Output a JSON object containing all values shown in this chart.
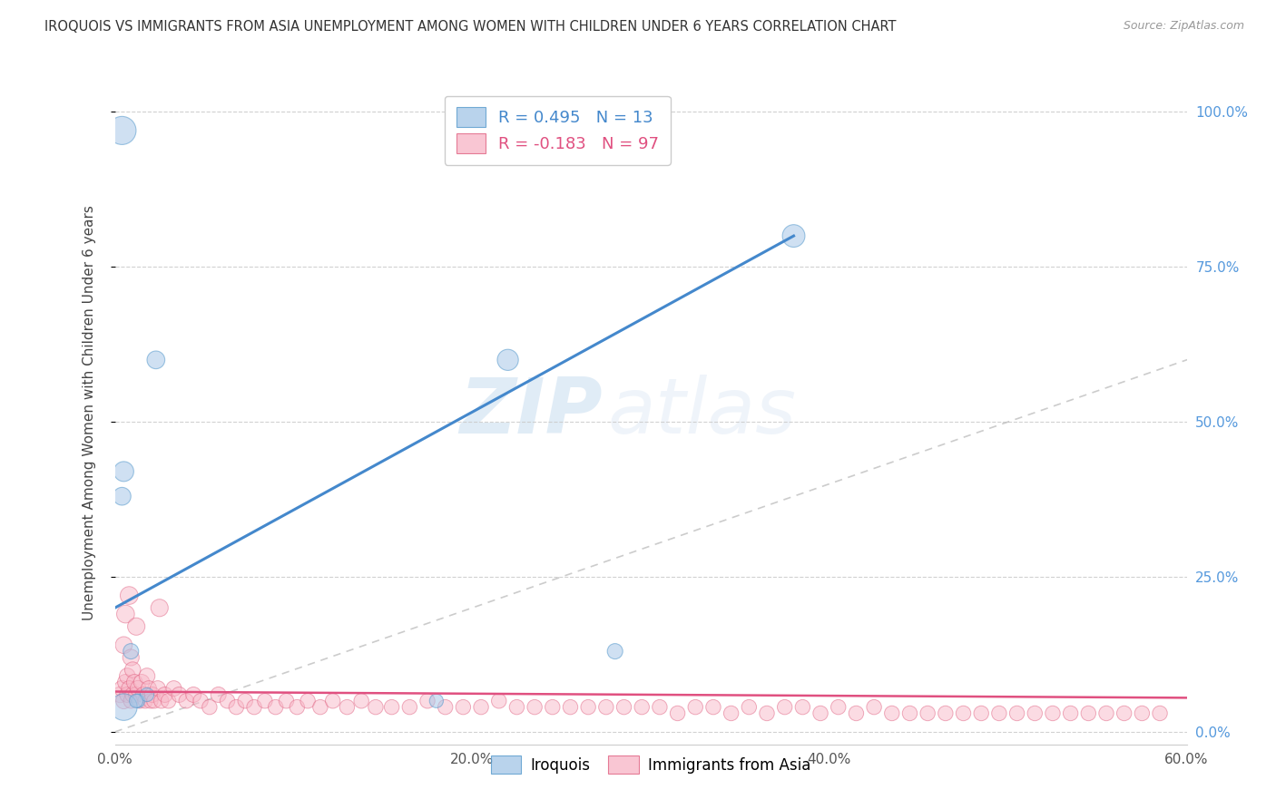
{
  "title": "IROQUOIS VS IMMIGRANTS FROM ASIA UNEMPLOYMENT AMONG WOMEN WITH CHILDREN UNDER 6 YEARS CORRELATION CHART",
  "source": "Source: ZipAtlas.com",
  "ylabel": "Unemployment Among Women with Children Under 6 years",
  "xlim": [
    0.0,
    0.6
  ],
  "ylim": [
    -0.02,
    1.05
  ],
  "xtick_labels": [
    "0.0%",
    "20.0%",
    "40.0%",
    "60.0%"
  ],
  "xtick_vals": [
    0.0,
    0.2,
    0.4,
    0.6
  ],
  "ytick_labels_right": [
    "0.0%",
    "25.0%",
    "50.0%",
    "75.0%",
    "100.0%"
  ],
  "ytick_vals": [
    0.0,
    0.25,
    0.5,
    0.75,
    1.0
  ],
  "blue_fill": "#a8c8e8",
  "blue_edge": "#5599cc",
  "pink_fill": "#f8b8c8",
  "pink_edge": "#e06080",
  "blue_line": "#4488cc",
  "pink_line": "#e05080",
  "ref_line": "#bbbbbb",
  "legend_blue_r": "R = 0.495",
  "legend_blue_n": "N = 13",
  "legend_pink_r": "R = -0.183",
  "legend_pink_n": "N = 97",
  "watermark_zip": "ZIP",
  "watermark_atlas": "atlas",
  "blue_line_x": [
    0.0,
    0.38
  ],
  "blue_line_y": [
    0.2,
    0.8
  ],
  "pink_line_x": [
    0.0,
    0.6
  ],
  "pink_line_y": [
    0.065,
    0.055
  ],
  "ref_line_x": [
    0.0,
    1.0
  ],
  "ref_line_y": [
    0.0,
    1.0
  ],
  "iroquois_x": [
    0.004,
    0.004,
    0.005,
    0.009,
    0.013,
    0.018,
    0.023,
    0.005,
    0.22,
    0.38,
    0.012,
    0.18,
    0.28
  ],
  "iroquois_y": [
    0.97,
    0.38,
    0.42,
    0.13,
    0.05,
    0.06,
    0.6,
    0.04,
    0.6,
    0.8,
    0.05,
    0.05,
    0.13
  ],
  "iroquois_s": [
    500,
    200,
    250,
    150,
    120,
    120,
    200,
    450,
    280,
    320,
    120,
    120,
    150
  ],
  "asia_x": [
    0.003,
    0.004,
    0.005,
    0.005,
    0.006,
    0.007,
    0.007,
    0.008,
    0.009,
    0.009,
    0.01,
    0.01,
    0.011,
    0.012,
    0.013,
    0.014,
    0.015,
    0.016,
    0.017,
    0.018,
    0.019,
    0.02,
    0.021,
    0.022,
    0.024,
    0.026,
    0.028,
    0.03,
    0.033,
    0.036,
    0.04,
    0.044,
    0.048,
    0.053,
    0.058,
    0.063,
    0.068,
    0.073,
    0.078,
    0.084,
    0.09,
    0.096,
    0.102,
    0.108,
    0.115,
    0.122,
    0.13,
    0.138,
    0.146,
    0.155,
    0.165,
    0.175,
    0.185,
    0.195,
    0.205,
    0.215,
    0.225,
    0.235,
    0.245,
    0.255,
    0.265,
    0.275,
    0.285,
    0.295,
    0.305,
    0.315,
    0.325,
    0.335,
    0.345,
    0.355,
    0.365,
    0.375,
    0.385,
    0.395,
    0.405,
    0.415,
    0.425,
    0.435,
    0.445,
    0.455,
    0.465,
    0.475,
    0.485,
    0.495,
    0.505,
    0.515,
    0.525,
    0.535,
    0.545,
    0.555,
    0.565,
    0.575,
    0.585,
    0.006,
    0.008,
    0.012,
    0.025
  ],
  "asia_y": [
    0.06,
    0.07,
    0.05,
    0.14,
    0.08,
    0.06,
    0.09,
    0.07,
    0.05,
    0.12,
    0.06,
    0.1,
    0.08,
    0.06,
    0.07,
    0.05,
    0.08,
    0.06,
    0.05,
    0.09,
    0.07,
    0.05,
    0.06,
    0.05,
    0.07,
    0.05,
    0.06,
    0.05,
    0.07,
    0.06,
    0.05,
    0.06,
    0.05,
    0.04,
    0.06,
    0.05,
    0.04,
    0.05,
    0.04,
    0.05,
    0.04,
    0.05,
    0.04,
    0.05,
    0.04,
    0.05,
    0.04,
    0.05,
    0.04,
    0.04,
    0.04,
    0.05,
    0.04,
    0.04,
    0.04,
    0.05,
    0.04,
    0.04,
    0.04,
    0.04,
    0.04,
    0.04,
    0.04,
    0.04,
    0.04,
    0.03,
    0.04,
    0.04,
    0.03,
    0.04,
    0.03,
    0.04,
    0.04,
    0.03,
    0.04,
    0.03,
    0.04,
    0.03,
    0.03,
    0.03,
    0.03,
    0.03,
    0.03,
    0.03,
    0.03,
    0.03,
    0.03,
    0.03,
    0.03,
    0.03,
    0.03,
    0.03,
    0.03,
    0.19,
    0.22,
    0.17,
    0.2
  ],
  "asia_s": [
    160,
    160,
    160,
    180,
    160,
    150,
    160,
    150,
    140,
    170,
    150,
    160,
    160,
    150,
    160,
    140,
    160,
    150,
    140,
    160,
    150,
    140,
    150,
    140,
    150,
    140,
    150,
    140,
    150,
    150,
    140,
    150,
    140,
    140,
    150,
    140,
    140,
    140,
    140,
    140,
    140,
    140,
    140,
    140,
    140,
    140,
    140,
    140,
    140,
    140,
    140,
    140,
    140,
    140,
    140,
    140,
    140,
    140,
    140,
    140,
    140,
    140,
    140,
    140,
    140,
    140,
    140,
    140,
    140,
    140,
    140,
    140,
    140,
    140,
    140,
    140,
    140,
    140,
    140,
    140,
    140,
    140,
    140,
    140,
    140,
    140,
    140,
    140,
    140,
    140,
    140,
    140,
    140,
    200,
    200,
    190,
    190
  ]
}
